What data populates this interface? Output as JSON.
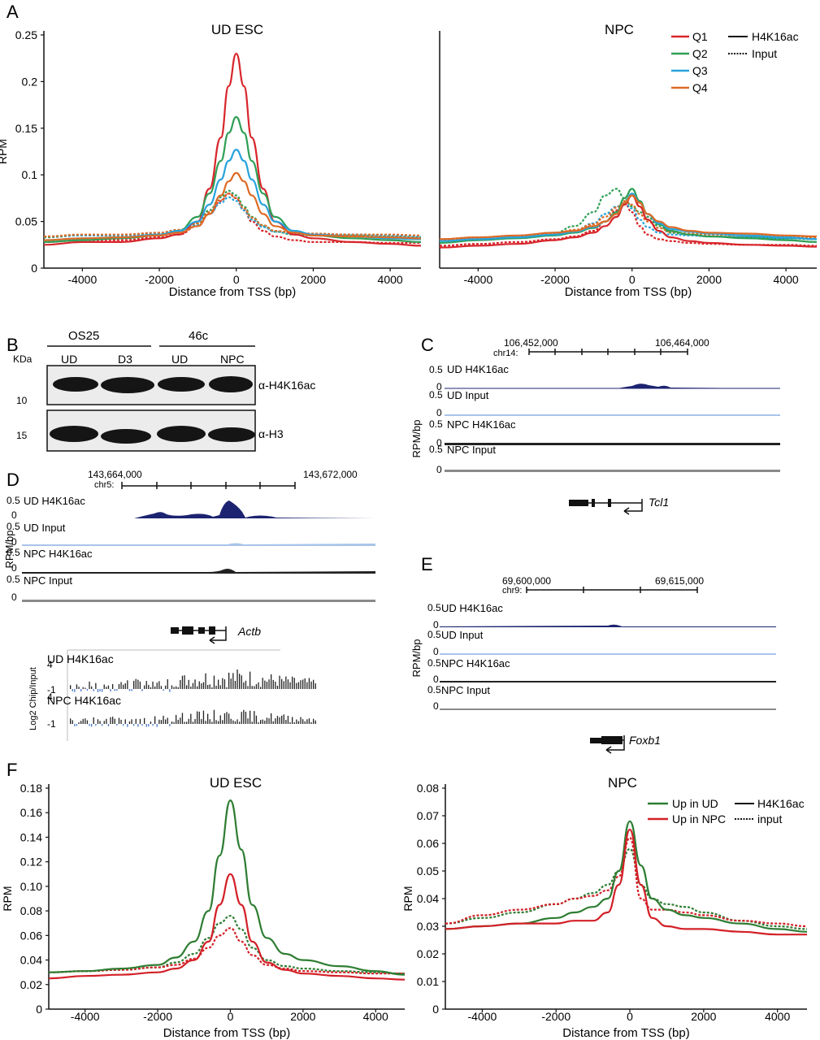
{
  "colors": {
    "q1": "#d7262b",
    "q2": "#2f9e55",
    "q3": "#27a3dc",
    "q4": "#dd6b26",
    "up_ud": "#2e7d32",
    "up_npc": "#d32027",
    "ud_h4": "#1c2370",
    "ud_input": "#a8c4ea",
    "npc_h4": "#222222",
    "npc_input": "#8a8a8a",
    "blot_bg": "#ececec",
    "band": "#151515"
  },
  "panels": {
    "A": "A",
    "B": "B",
    "C": "C",
    "D": "D",
    "E": "E",
    "F": "F"
  },
  "legendA": {
    "series": [
      "Q1",
      "Q2",
      "Q3",
      "Q4"
    ],
    "styles": [
      "H4K16ac",
      "Input"
    ]
  },
  "legendF": {
    "series": [
      "Up in UD",
      "Up in NPC"
    ],
    "styles": [
      "H4K16ac",
      "input"
    ]
  },
  "blot": {
    "groups": [
      "OS25",
      "46c"
    ],
    "lanes": [
      "UD",
      "D3",
      "UD",
      "NPC"
    ],
    "kda_label": "KDa",
    "markers": [
      "10",
      "15"
    ],
    "antibodies": [
      "α-H4K16ac",
      "α-H3"
    ]
  },
  "tracks": {
    "C": {
      "chrom": "chr14:",
      "coord_left": "106,452,000",
      "coord_right": "106,464,000",
      "ylabel": "RPM/bp",
      "ymax": "0.5",
      "ymin": "0",
      "labels": [
        "UD H4K16ac",
        "UD Input",
        "NPC H4K16ac",
        "NPC Input"
      ],
      "gene": "Tcl1"
    },
    "D": {
      "chrom": "chr5:",
      "coord_left": "143,664,000",
      "coord_right": "143,672,000",
      "ylabel": "RPM/bp",
      "ymax": "0.5",
      "ymin": "0",
      "labels": [
        "UD H4K16ac",
        "UD Input",
        "NPC H4K16ac",
        "NPC Input"
      ],
      "gene": "Actb",
      "log_ylabel": "Log2 Chip/Input",
      "log_max": "4",
      "log_min": "-1",
      "log_labels": [
        "UD H4K16ac",
        "NPC H4K16ac"
      ]
    },
    "E": {
      "chrom": "chr9:",
      "coord_left": "69,600,000",
      "coord_right": "69,615,000",
      "ylabel": "RPM/bp",
      "ymax": "0.5",
      "ymin": "0",
      "labels": [
        "UD H4K16ac",
        "UD Input",
        "NPC H4K16ac",
        "NPC Input"
      ],
      "gene": "Foxb1"
    }
  },
  "chart_data": [
    {
      "type": "line",
      "title": "UD ESC",
      "xlabel": "Distance from TSS (bp)",
      "ylabel": "RPM",
      "xlim": [
        -5000,
        4800
      ],
      "ylim": [
        0,
        0.25
      ],
      "xticks": [
        -4000,
        -2000,
        0,
        2000,
        4000
      ],
      "xtick_labels": [
        "-4000",
        "-2000",
        "0",
        "2000",
        "4000"
      ],
      "yticks": [
        0,
        0.05,
        0.1,
        0.15,
        0.2,
        0.25
      ],
      "ytick_labels": [
        "0",
        "0.05",
        "0.1",
        "0.15",
        "0.2",
        "0.25"
      ],
      "x": [
        -5000,
        -4000,
        -3000,
        -2000,
        -1500,
        -1000,
        -700,
        -400,
        -200,
        0,
        200,
        400,
        700,
        1000,
        1500,
        2000,
        3000,
        4000,
        4800
      ],
      "series": [
        {
          "name": "Q1",
          "color": "q1",
          "dash": false,
          "values": [
            0.025,
            0.028,
            0.028,
            0.032,
            0.036,
            0.05,
            0.085,
            0.14,
            0.195,
            0.23,
            0.195,
            0.14,
            0.085,
            0.05,
            0.036,
            0.032,
            0.028,
            0.026,
            0.024
          ]
        },
        {
          "name": "Q2",
          "color": "q2",
          "dash": false,
          "values": [
            0.028,
            0.03,
            0.032,
            0.035,
            0.04,
            0.055,
            0.08,
            0.115,
            0.145,
            0.162,
            0.145,
            0.115,
            0.08,
            0.055,
            0.04,
            0.035,
            0.032,
            0.03,
            0.028
          ]
        },
        {
          "name": "Q3",
          "color": "q3",
          "dash": false,
          "values": [
            0.03,
            0.032,
            0.033,
            0.036,
            0.04,
            0.05,
            0.068,
            0.095,
            0.115,
            0.127,
            0.115,
            0.095,
            0.068,
            0.05,
            0.04,
            0.036,
            0.034,
            0.032,
            0.031
          ]
        },
        {
          "name": "Q4",
          "color": "q4",
          "dash": false,
          "values": [
            0.03,
            0.032,
            0.033,
            0.035,
            0.038,
            0.045,
            0.058,
            0.078,
            0.093,
            0.102,
            0.093,
            0.078,
            0.058,
            0.045,
            0.038,
            0.035,
            0.034,
            0.033,
            0.032
          ]
        },
        {
          "name": "Q1",
          "color": "q1",
          "dash": true,
          "values": [
            0.028,
            0.03,
            0.03,
            0.033,
            0.036,
            0.045,
            0.058,
            0.072,
            0.08,
            0.075,
            0.062,
            0.05,
            0.04,
            0.034,
            0.03,
            0.028,
            0.028,
            0.027,
            0.027
          ]
        },
        {
          "name": "Q2",
          "color": "q2",
          "dash": true,
          "values": [
            0.033,
            0.035,
            0.035,
            0.037,
            0.04,
            0.048,
            0.062,
            0.076,
            0.083,
            0.078,
            0.066,
            0.055,
            0.045,
            0.039,
            0.036,
            0.035,
            0.035,
            0.034,
            0.033
          ]
        },
        {
          "name": "Q3",
          "color": "q3",
          "dash": true,
          "values": [
            0.034,
            0.035,
            0.035,
            0.037,
            0.04,
            0.046,
            0.058,
            0.07,
            0.076,
            0.072,
            0.062,
            0.052,
            0.044,
            0.039,
            0.037,
            0.036,
            0.036,
            0.035,
            0.034
          ]
        },
        {
          "name": "Q4",
          "color": "q4",
          "dash": true,
          "values": [
            0.034,
            0.036,
            0.036,
            0.038,
            0.041,
            0.048,
            0.06,
            0.073,
            0.08,
            0.075,
            0.064,
            0.054,
            0.046,
            0.04,
            0.038,
            0.037,
            0.036,
            0.036,
            0.035
          ]
        }
      ]
    },
    {
      "type": "line",
      "title": "NPC",
      "xlabel": "Distance from TSS (bp)",
      "ylabel": "",
      "xlim": [
        -5000,
        4800
      ],
      "ylim": [
        0,
        0.25
      ],
      "xticks": [
        -4000,
        -2000,
        0,
        2000,
        4000
      ],
      "xtick_labels": [
        "-4000",
        "-2000",
        "0",
        "2000",
        "4000"
      ],
      "yticks": [],
      "ytick_labels": [],
      "x": [
        -5000,
        -4000,
        -3000,
        -2000,
        -1500,
        -1000,
        -700,
        -400,
        -200,
        0,
        200,
        400,
        700,
        1000,
        1500,
        2000,
        3000,
        4000,
        4800
      ],
      "series": [
        {
          "name": "Q1",
          "color": "q1",
          "dash": false,
          "values": [
            0.022,
            0.024,
            0.026,
            0.03,
            0.033,
            0.038,
            0.045,
            0.055,
            0.068,
            0.078,
            0.066,
            0.052,
            0.04,
            0.033,
            0.029,
            0.027,
            0.025,
            0.024,
            0.023
          ]
        },
        {
          "name": "Q2",
          "color": "q2",
          "dash": false,
          "values": [
            0.027,
            0.03,
            0.032,
            0.035,
            0.038,
            0.043,
            0.05,
            0.06,
            0.075,
            0.085,
            0.072,
            0.058,
            0.047,
            0.04,
            0.036,
            0.034,
            0.032,
            0.03,
            0.028
          ]
        },
        {
          "name": "Q3",
          "color": "q3",
          "dash": false,
          "values": [
            0.029,
            0.031,
            0.033,
            0.036,
            0.039,
            0.044,
            0.05,
            0.058,
            0.07,
            0.08,
            0.07,
            0.058,
            0.048,
            0.042,
            0.039,
            0.037,
            0.035,
            0.033,
            0.031
          ]
        },
        {
          "name": "Q4",
          "color": "q4",
          "dash": false,
          "values": [
            0.031,
            0.033,
            0.035,
            0.038,
            0.04,
            0.045,
            0.05,
            0.058,
            0.07,
            0.078,
            0.07,
            0.058,
            0.05,
            0.044,
            0.04,
            0.038,
            0.037,
            0.035,
            0.034
          ]
        },
        {
          "name": "Q1",
          "color": "q1",
          "dash": true,
          "values": [
            0.024,
            0.026,
            0.028,
            0.031,
            0.034,
            0.04,
            0.05,
            0.062,
            0.07,
            0.06,
            0.045,
            0.036,
            0.031,
            0.029,
            0.027,
            0.026,
            0.025,
            0.025,
            0.024
          ]
        },
        {
          "name": "Q2",
          "color": "q2",
          "dash": true,
          "values": [
            0.03,
            0.032,
            0.033,
            0.038,
            0.045,
            0.06,
            0.078,
            0.085,
            0.075,
            0.066,
            0.06,
            0.055,
            0.045,
            0.038,
            0.036,
            0.034,
            0.033,
            0.032,
            0.031
          ]
        },
        {
          "name": "Q3",
          "color": "q3",
          "dash": true,
          "values": [
            0.03,
            0.032,
            0.033,
            0.036,
            0.04,
            0.048,
            0.058,
            0.066,
            0.07,
            0.064,
            0.052,
            0.044,
            0.038,
            0.036,
            0.035,
            0.034,
            0.033,
            0.032,
            0.032
          ]
        },
        {
          "name": "Q4",
          "color": "q4",
          "dash": true,
          "values": [
            0.031,
            0.033,
            0.034,
            0.037,
            0.041,
            0.047,
            0.055,
            0.065,
            0.072,
            0.068,
            0.058,
            0.05,
            0.043,
            0.039,
            0.037,
            0.036,
            0.035,
            0.034,
            0.033
          ]
        }
      ]
    },
    {
      "type": "line",
      "title": "UD ESC",
      "xlabel": "Distance from TSS (bp)",
      "ylabel": "RPM",
      "xlim": [
        -5000,
        4800
      ],
      "ylim": [
        0,
        0.18
      ],
      "xticks": [
        -4000,
        -2000,
        0,
        2000,
        4000
      ],
      "xtick_labels": [
        "-4000",
        "-2000",
        "0",
        "2000",
        "4000"
      ],
      "yticks": [
        0,
        0.02,
        0.04,
        0.06,
        0.08,
        0.1,
        0.12,
        0.14,
        0.16,
        0.18
      ],
      "ytick_labels": [
        "0",
        "0.02",
        "0.04",
        "0.06",
        "0.08",
        "0.10",
        "0.12",
        "0.14",
        "0.16",
        "0.18"
      ],
      "x": [
        -5000,
        -4000,
        -3000,
        -2000,
        -1500,
        -1000,
        -600,
        -300,
        0,
        300,
        600,
        1000,
        1500,
        2000,
        3000,
        4000,
        4800
      ],
      "series": [
        {
          "name": "Up in UD",
          "color": "up_ud",
          "dash": false,
          "values": [
            0.03,
            0.031,
            0.033,
            0.036,
            0.042,
            0.055,
            0.08,
            0.125,
            0.17,
            0.13,
            0.085,
            0.058,
            0.045,
            0.04,
            0.035,
            0.031,
            0.028
          ]
        },
        {
          "name": "Up in NPC",
          "color": "up_npc",
          "dash": false,
          "values": [
            0.025,
            0.027,
            0.028,
            0.03,
            0.033,
            0.04,
            0.055,
            0.085,
            0.11,
            0.085,
            0.055,
            0.038,
            0.032,
            0.029,
            0.027,
            0.025,
            0.024
          ]
        },
        {
          "name": "Up in UD",
          "color": "up_ud",
          "dash": true,
          "values": [
            0.03,
            0.031,
            0.032,
            0.034,
            0.038,
            0.045,
            0.058,
            0.07,
            0.076,
            0.065,
            0.05,
            0.04,
            0.035,
            0.033,
            0.031,
            0.03,
            0.029
          ]
        },
        {
          "name": "Up in NPC",
          "color": "up_npc",
          "dash": true,
          "values": [
            0.03,
            0.031,
            0.032,
            0.034,
            0.036,
            0.041,
            0.05,
            0.06,
            0.066,
            0.055,
            0.044,
            0.036,
            0.033,
            0.031,
            0.03,
            0.029,
            0.029
          ]
        }
      ]
    },
    {
      "type": "line",
      "title": "NPC",
      "xlabel": "Distance from TSS (bp)",
      "ylabel": "RPM",
      "xlim": [
        -5000,
        4800
      ],
      "ylim": [
        0,
        0.08
      ],
      "xticks": [
        -4000,
        -2000,
        0,
        2000,
        4000
      ],
      "xtick_labels": [
        "-4000",
        "-2000",
        "0",
        "2000",
        "4000"
      ],
      "yticks": [
        0,
        0.01,
        0.02,
        0.03,
        0.04,
        0.05,
        0.06,
        0.07,
        0.08
      ],
      "ytick_labels": [
        "0",
        "0.01",
        "0.02",
        "0.03",
        "0.04",
        "0.05",
        "0.06",
        "0.07",
        "0.08"
      ],
      "x": [
        -5000,
        -4000,
        -3000,
        -2000,
        -1500,
        -1000,
        -600,
        -300,
        0,
        300,
        600,
        1000,
        1500,
        2000,
        3000,
        4000,
        4800
      ],
      "series": [
        {
          "name": "Up in UD",
          "color": "up_ud",
          "dash": false,
          "values": [
            0.029,
            0.03,
            0.031,
            0.033,
            0.035,
            0.037,
            0.04,
            0.05,
            0.068,
            0.052,
            0.04,
            0.036,
            0.034,
            0.033,
            0.031,
            0.029,
            0.028
          ]
        },
        {
          "name": "Up in NPC",
          "color": "up_npc",
          "dash": false,
          "values": [
            0.029,
            0.03,
            0.031,
            0.031,
            0.032,
            0.032,
            0.035,
            0.045,
            0.065,
            0.045,
            0.033,
            0.03,
            0.029,
            0.029,
            0.028,
            0.027,
            0.027
          ]
        },
        {
          "name": "Up in UD",
          "color": "up_ud",
          "dash": true,
          "values": [
            0.031,
            0.033,
            0.035,
            0.038,
            0.04,
            0.042,
            0.045,
            0.05,
            0.058,
            0.045,
            0.04,
            0.038,
            0.037,
            0.035,
            0.032,
            0.03,
            0.029
          ]
        },
        {
          "name": "Up in NPC",
          "color": "up_npc",
          "dash": true,
          "values": [
            0.031,
            0.034,
            0.036,
            0.038,
            0.04,
            0.041,
            0.043,
            0.048,
            0.062,
            0.04,
            0.036,
            0.036,
            0.035,
            0.034,
            0.032,
            0.031,
            0.03
          ]
        }
      ]
    }
  ]
}
